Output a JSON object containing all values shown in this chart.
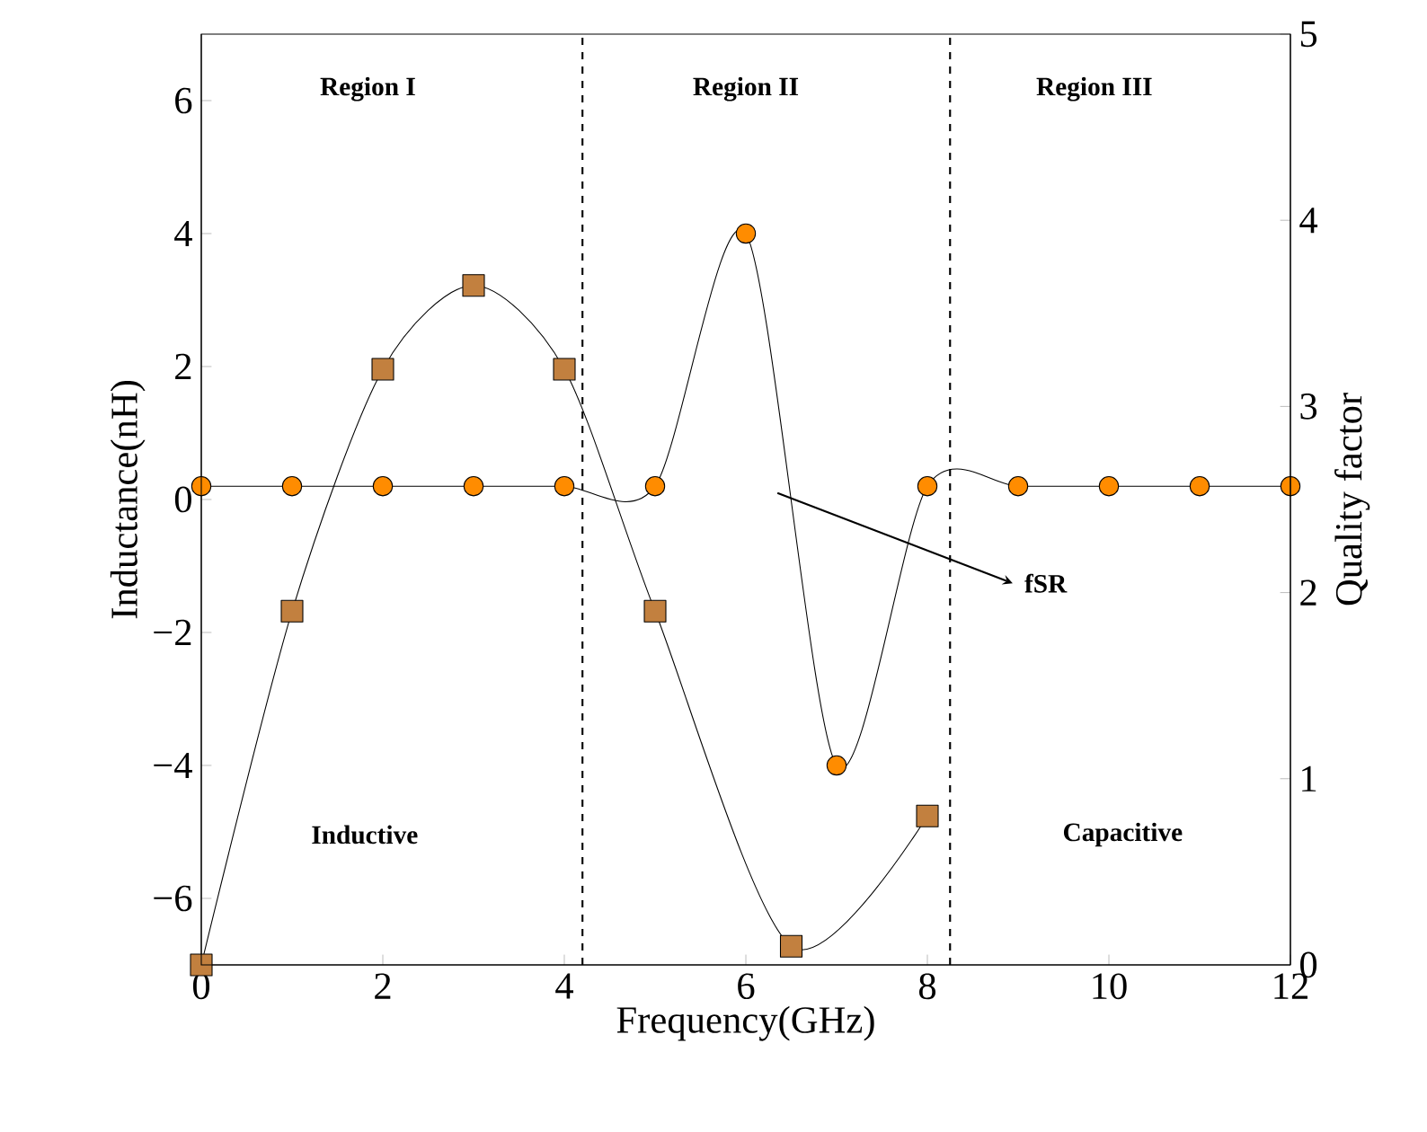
{
  "chart_data": {
    "type": "line",
    "xlabel": "Frequency(GHz)",
    "ylabel": "Inductance(nH)",
    "y2label": "Quality factor",
    "xlim": [
      0,
      12
    ],
    "xticks": [
      0,
      2,
      4,
      6,
      8,
      10,
      12
    ],
    "ylim": [
      -7,
      7
    ],
    "yticks": [
      {
        "value": -6,
        "label": "−6"
      },
      {
        "value": -4,
        "label": "−4"
      },
      {
        "value": -2,
        "label": "−2"
      },
      0,
      2,
      4,
      6
    ],
    "y2lim": [
      0,
      5
    ],
    "y2ticks": [
      0,
      1,
      2,
      3,
      4,
      5
    ],
    "grid": false,
    "line_style": "solid",
    "series": [
      {
        "color": "#ff8c00",
        "marker": "circle",
        "x": [
          0,
          1,
          2,
          3,
          4,
          5,
          6,
          7,
          8,
          9,
          10,
          11,
          12
        ],
        "values": [
          0.2,
          0.2,
          0.2,
          0.2,
          0.2,
          0.2,
          4,
          -4,
          0.2,
          0.2,
          0.2,
          0.2,
          0.2
        ]
      },
      {
        "color": "#c2803f",
        "marker": "square",
        "axis": "y2",
        "x": [
          0,
          1,
          2,
          3,
          4,
          5,
          6.5,
          8
        ],
        "values": [
          0,
          1.9,
          3.2,
          3.65,
          3.2,
          1.9,
          0.1,
          0.8
        ]
      }
    ],
    "ref_lines": [
      {
        "axis": "x",
        "value": 4.2,
        "line_style": "dashed"
      },
      {
        "axis": "x",
        "value": 8.25,
        "line_style": "dashed"
      }
    ],
    "annotations": [
      "Region I",
      "Region II",
      "Region III",
      "Inductive",
      "Capacitive",
      "fSR"
    ]
  }
}
